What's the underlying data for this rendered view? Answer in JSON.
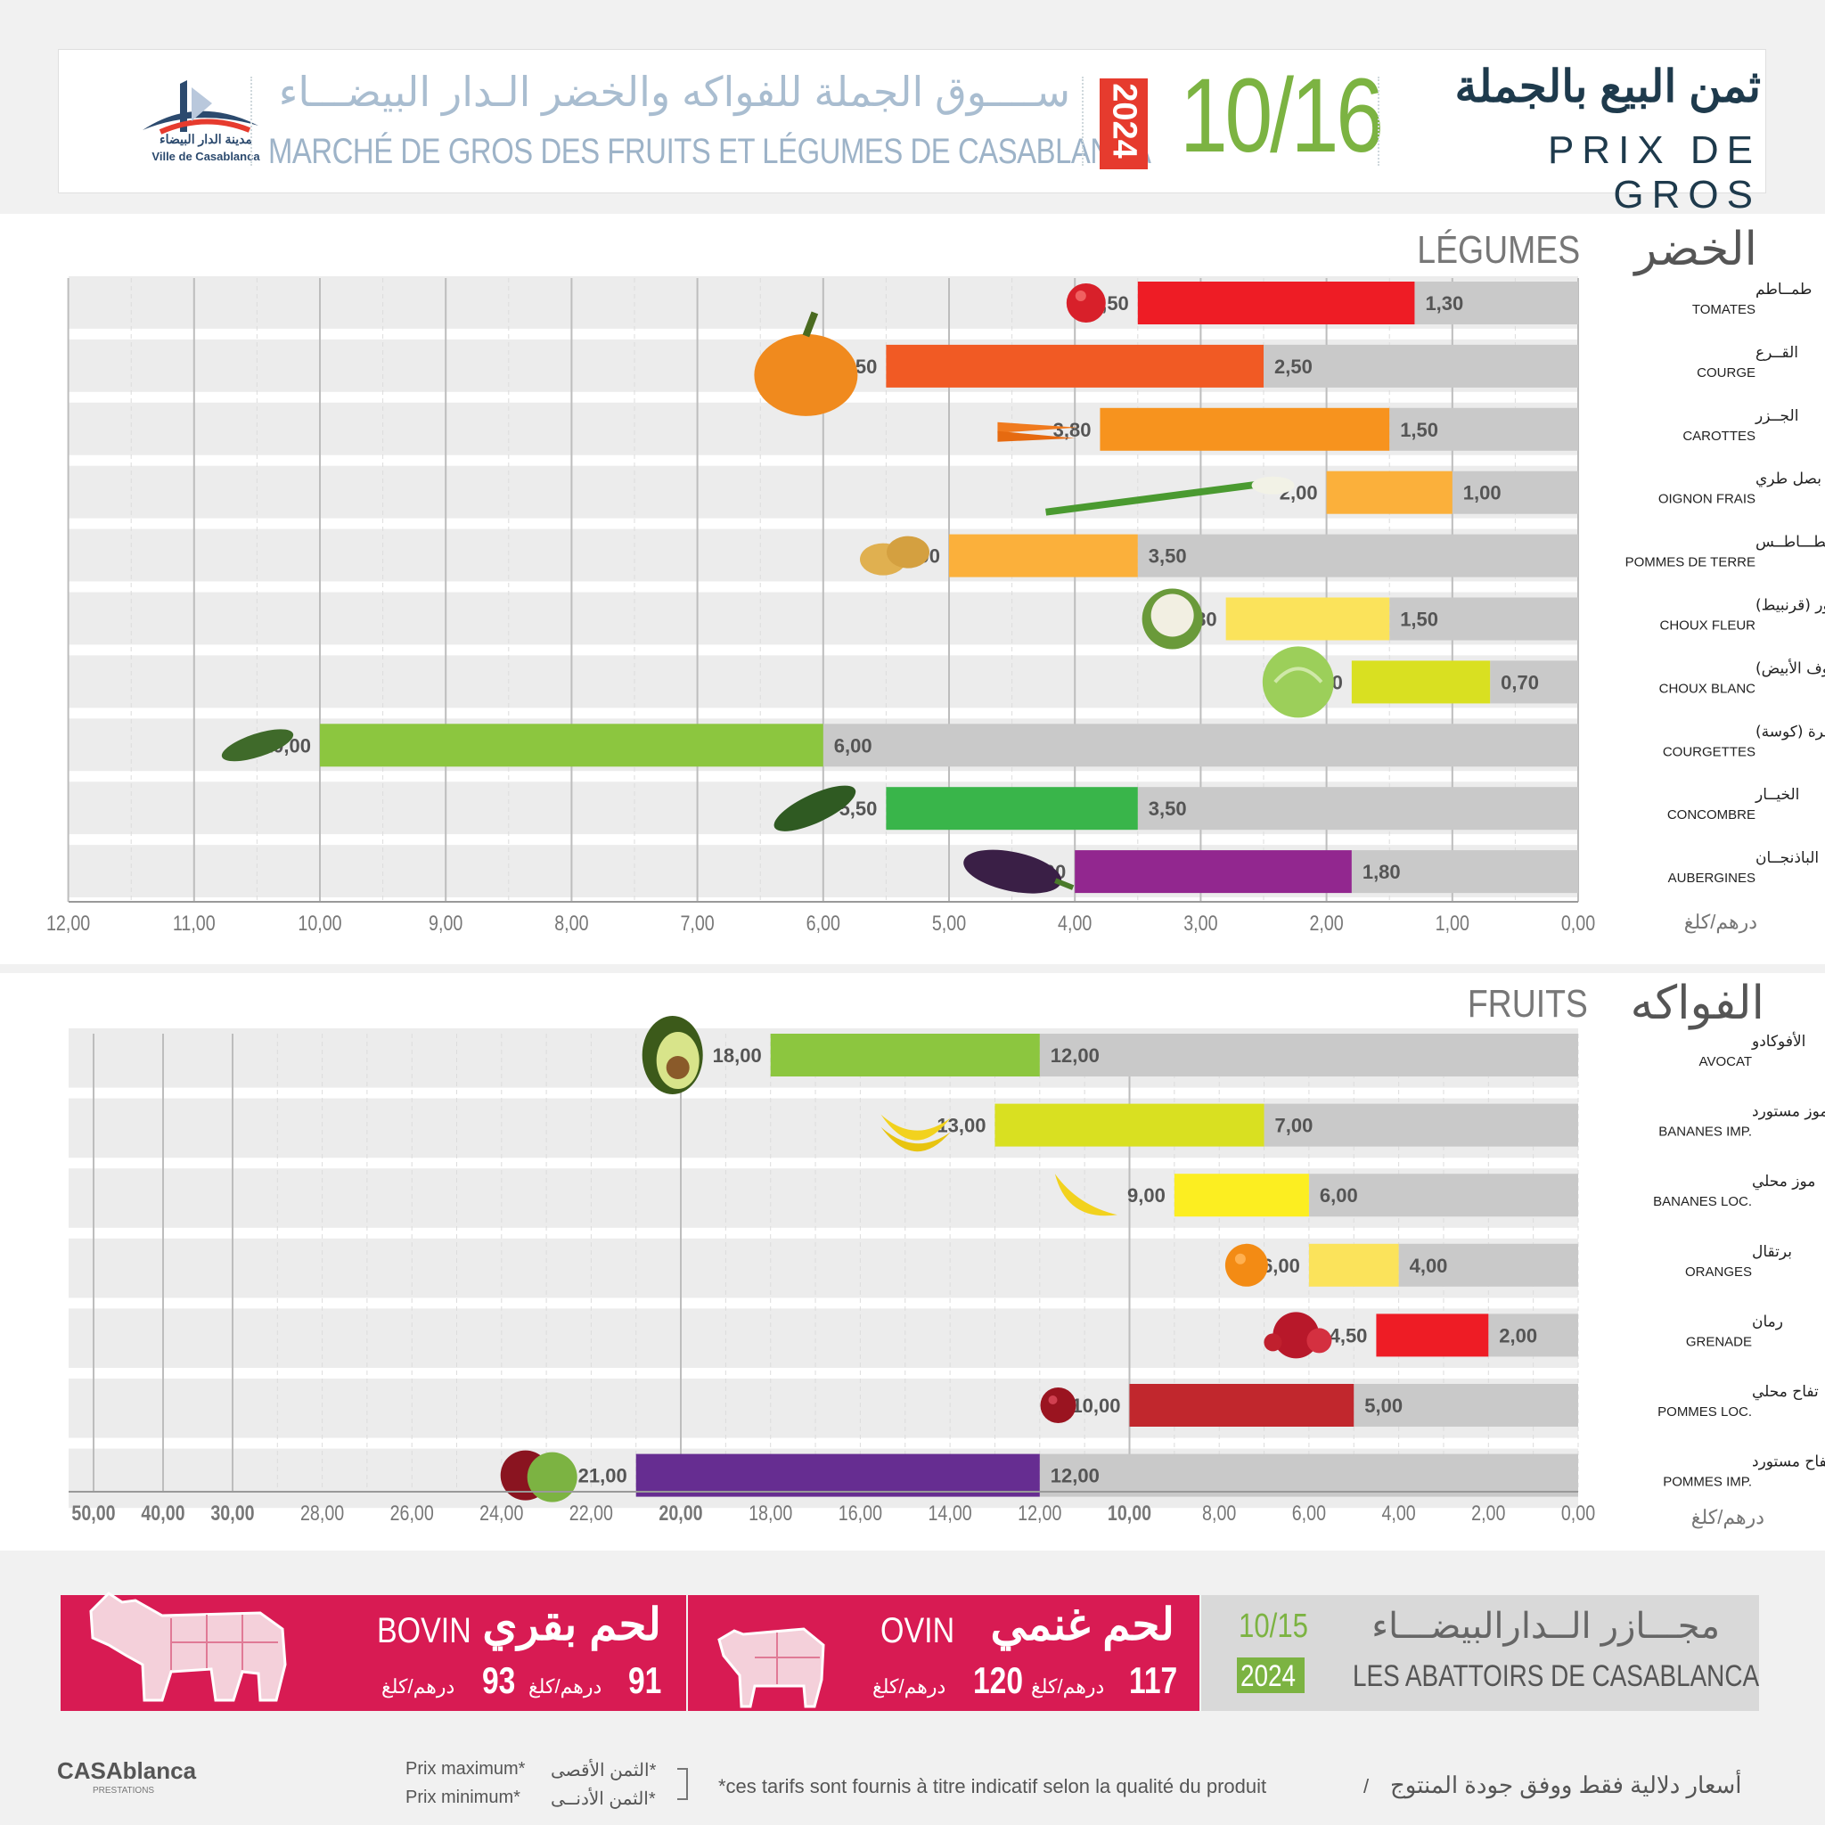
{
  "header": {
    "logo_ar": "مدينة الدار البيضاء",
    "logo_fr": "Ville de Casablanca",
    "market_ar": "ســــوق الجملة للفواكه والخضر الـدار البيضـــاء",
    "market_fr": "MARCHÉ DE GROS DES FRUITS ET LÉGUMES DE CASABLANCA",
    "year": "2024",
    "date": "10/16",
    "title_ar": "ثمن البيع بالجملة",
    "title_fr": "PRIX DE GROS"
  },
  "vegetables": {
    "title_ar": "الخضر",
    "title_fr": "LÉGUMES",
    "unit": "درهم/كلغ"
  },
  "fruits": {
    "title_ar": "الفواكه",
    "title_fr": "FRUITS",
    "unit": "درهم/كلغ"
  },
  "chart_data": [
    {
      "type": "bar",
      "orientation": "horizontal",
      "axis_direction": "right-to-left",
      "categories": [
        {
          "ar": "طمــاطم",
          "fr": "TOMATES"
        },
        {
          "ar": "القــرع",
          "fr": "COURGE"
        },
        {
          "ar": "الجــزر",
          "fr": "CAROTTES"
        },
        {
          "ar": "بصل طري",
          "fr": "OIGNON FRAIS"
        },
        {
          "ar": "بطـــاطــس",
          "fr": "POMMES DE TERRE"
        },
        {
          "ar": "شفلور (قرنبيط)",
          "fr": "CHOUX FLEUR"
        },
        {
          "ar": "كرومب (الملفوف الأبيض)",
          "fr": "CHOUX BLANC"
        },
        {
          "ar": "قرعة خضرة (كوسة)",
          "fr": "COURGETTES"
        },
        {
          "ar": "الخيــار",
          "fr": "CONCOMBRE"
        },
        {
          "ar": "الباذنجــان",
          "fr": "AUBERGINES"
        }
      ],
      "series": [
        {
          "name": "Prix minimum",
          "values": [
            "1,30",
            "2,50",
            "1,50",
            "1,00",
            "3,50",
            "1,50",
            "0,70",
            "6,00",
            "3,50",
            "1,80"
          ]
        },
        {
          "name": "Prix maximum",
          "values": [
            "3,50",
            "5,50",
            "3,80",
            "2,00",
            "5,00",
            "2,80",
            "1,80",
            "10,00",
            "5,50",
            "4,00"
          ]
        }
      ],
      "bar_colors": [
        "#ee1c25",
        "#f15a24",
        "#f7931e",
        "#fbb03b",
        "#fbb03b",
        "#fbe35b",
        "#d9e021",
        "#8cc63f",
        "#39b54a",
        "#92278f"
      ],
      "icons": [
        "tomato",
        "pumpkin",
        "carrots",
        "spring-onion",
        "potatoes",
        "cauliflower",
        "cabbage",
        "zucchini",
        "cucumber",
        "eggplant"
      ],
      "x_ticks": [
        "12,00",
        "11,00",
        "10,00",
        "9,00",
        "8,00",
        "7,00",
        "6,00",
        "5,00",
        "4,00",
        "3,00",
        "2,00",
        "1,00",
        "0,00"
      ],
      "xlim": [
        0,
        12
      ]
    },
    {
      "type": "bar",
      "orientation": "horizontal",
      "axis_direction": "right-to-left",
      "axis_scale": "piecewise: 0–20 linear, 20–30 compressed, 30–50 compressed",
      "categories": [
        {
          "ar": "الأفوكادو",
          "fr": "AVOCAT"
        },
        {
          "ar": "موز مستورد",
          "fr": "BANANES IMP."
        },
        {
          "ar": "موز محلي",
          "fr": "BANANES LOC."
        },
        {
          "ar": "برتقال",
          "fr": "ORANGES"
        },
        {
          "ar": "رمان",
          "fr": "GRENADE"
        },
        {
          "ar": "تفاح محلي",
          "fr": "POMMES LOC."
        },
        {
          "ar": "تفاح مستورد",
          "fr": "POMMES IMP."
        }
      ],
      "series": [
        {
          "name": "Prix minimum",
          "values": [
            "12,00",
            "7,00",
            "6,00",
            "4,00",
            "2,00",
            "5,00",
            "12,00"
          ]
        },
        {
          "name": "Prix maximum",
          "values": [
            "18,00",
            "13,00",
            "9,00",
            "6,00",
            "4,50",
            "10,00",
            "21,00"
          ]
        }
      ],
      "bar_colors": [
        "#8cc63f",
        "#d9e021",
        "#fcee21",
        "#fbe35b",
        "#ee1c25",
        "#c1272d",
        "#662d91"
      ],
      "icons": [
        "avocado",
        "bananas",
        "banana",
        "orange",
        "pomegranate",
        "apple-red",
        "apples"
      ],
      "x_ticks": [
        "50,00",
        "40,00",
        "30,00",
        "28,00",
        "26,00",
        "24,00",
        "22,00",
        "20,00",
        "18,00",
        "16,00",
        "14,00",
        "12,00",
        "10,00",
        "8,00",
        "6,00",
        "4,00",
        "2,00",
        "0,00"
      ],
      "xlim": [
        0,
        50
      ]
    }
  ],
  "meat": {
    "bovin_fr": "BOVIN",
    "bovin_ar": "لحم بقري",
    "bovin_min": "91",
    "bovin_max": "93",
    "ovin_fr": "OVIN",
    "ovin_ar": "لحم غنمي",
    "ovin_min": "117",
    "ovin_max": "120",
    "unit": "درهم/كلغ",
    "abattoir_ar": "مجـــازر الــدارالبيضـــاء",
    "abattoir_fr": "LES ABATTOIRS DE CASABLANCA",
    "date": "10/15",
    "year": "2024"
  },
  "footer": {
    "logo": "CASAblanca",
    "logo_sub": "PRESTATIONS",
    "legend_max_fr": "Prix maximum*",
    "legend_min_fr": "Prix minimum*",
    "legend_max_ar": "*الثمن الأقصى",
    "legend_min_ar": "*الثمن الأدنــى",
    "disclaimer_fr": "*ces tarifs sont fournis à titre indicatif selon la qualité du produit",
    "separator": "/",
    "disclaimer_ar": "أسعار دلالية فقط ووفق جودة المنتوج"
  }
}
